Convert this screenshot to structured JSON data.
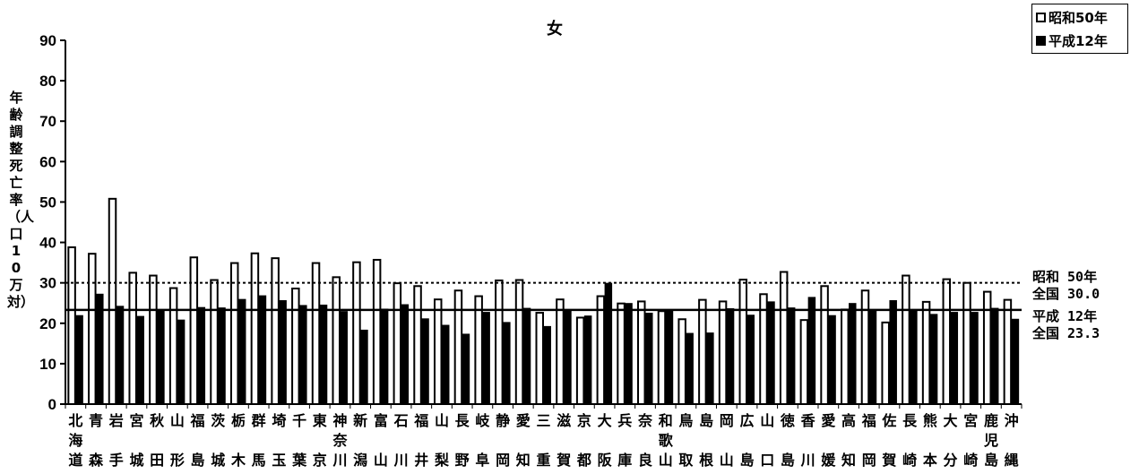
{
  "chart_data": {
    "type": "bar",
    "title": "女",
    "ylabel": "年齢調整死亡率（人口10万対）",
    "xlabel": "",
    "ylim": [
      0,
      90
    ],
    "yticks": [
      0,
      10,
      20,
      30,
      40,
      50,
      60,
      70,
      80,
      90
    ],
    "legend_position": "top-right",
    "grid": false,
    "categories": [
      "北海道",
      "青森",
      "岩手",
      "宮城",
      "秋田",
      "山形",
      "福島",
      "茨城",
      "栃木",
      "群馬",
      "埼玉",
      "千葉",
      "東京",
      "神奈川",
      "新潟",
      "富山",
      "石川",
      "福井",
      "山梨",
      "長野",
      "岐阜",
      "静岡",
      "愛知",
      "三重",
      "滋賀",
      "京都",
      "大阪",
      "兵庫",
      "奈良",
      "和歌山",
      "鳥取",
      "島根",
      "岡山",
      "広島",
      "山口",
      "徳島",
      "香川",
      "愛媛",
      "高知",
      "福岡",
      "佐賀",
      "長崎",
      "熊本",
      "大分",
      "宮崎",
      "鹿児島",
      "沖縄"
    ],
    "series": [
      {
        "name": "昭和50年",
        "style": "hollow",
        "values": [
          38.8,
          37.2,
          50.8,
          32.5,
          31.8,
          28.7,
          36.3,
          30.7,
          34.9,
          37.3,
          36.1,
          28.6,
          34.9,
          31.4,
          35.1,
          35.7,
          29.9,
          29.2,
          25.9,
          28.1,
          26.7,
          30.6,
          30.7,
          22.6,
          25.9,
          21.4,
          26.7,
          24.9,
          25.4,
          23.0,
          21.0,
          25.8,
          25.4,
          30.8,
          27.2,
          32.7,
          20.8,
          29.2,
          23.4,
          28.1,
          20.2,
          31.8,
          25.3,
          30.9,
          30.0,
          27.8,
          25.8
        ]
      },
      {
        "name": "平成12年",
        "style": "solid",
        "values": [
          21.9,
          27.2,
          24.2,
          21.7,
          23.0,
          20.8,
          23.9,
          23.8,
          25.9,
          26.8,
          25.6,
          24.4,
          24.5,
          22.9,
          18.3,
          23.5,
          24.6,
          21.1,
          19.5,
          17.3,
          22.7,
          20.2,
          23.7,
          19.2,
          23.2,
          21.8,
          29.9,
          24.9,
          22.5,
          23.2,
          17.5,
          17.6,
          23.6,
          22.0,
          25.3,
          23.8,
          26.4,
          21.9,
          24.9,
          23.2,
          25.6,
          23.2,
          22.2,
          22.7,
          22.7,
          23.7,
          21.0
        ]
      }
    ],
    "reference_lines": [
      {
        "value": 30.0,
        "style": "dotted",
        "label_lines": [
          "昭和 50年",
          "全国 30.0"
        ]
      },
      {
        "value": 23.3,
        "style": "solid",
        "label_lines": [
          "平成 12年",
          "全国 23.3"
        ]
      }
    ]
  }
}
